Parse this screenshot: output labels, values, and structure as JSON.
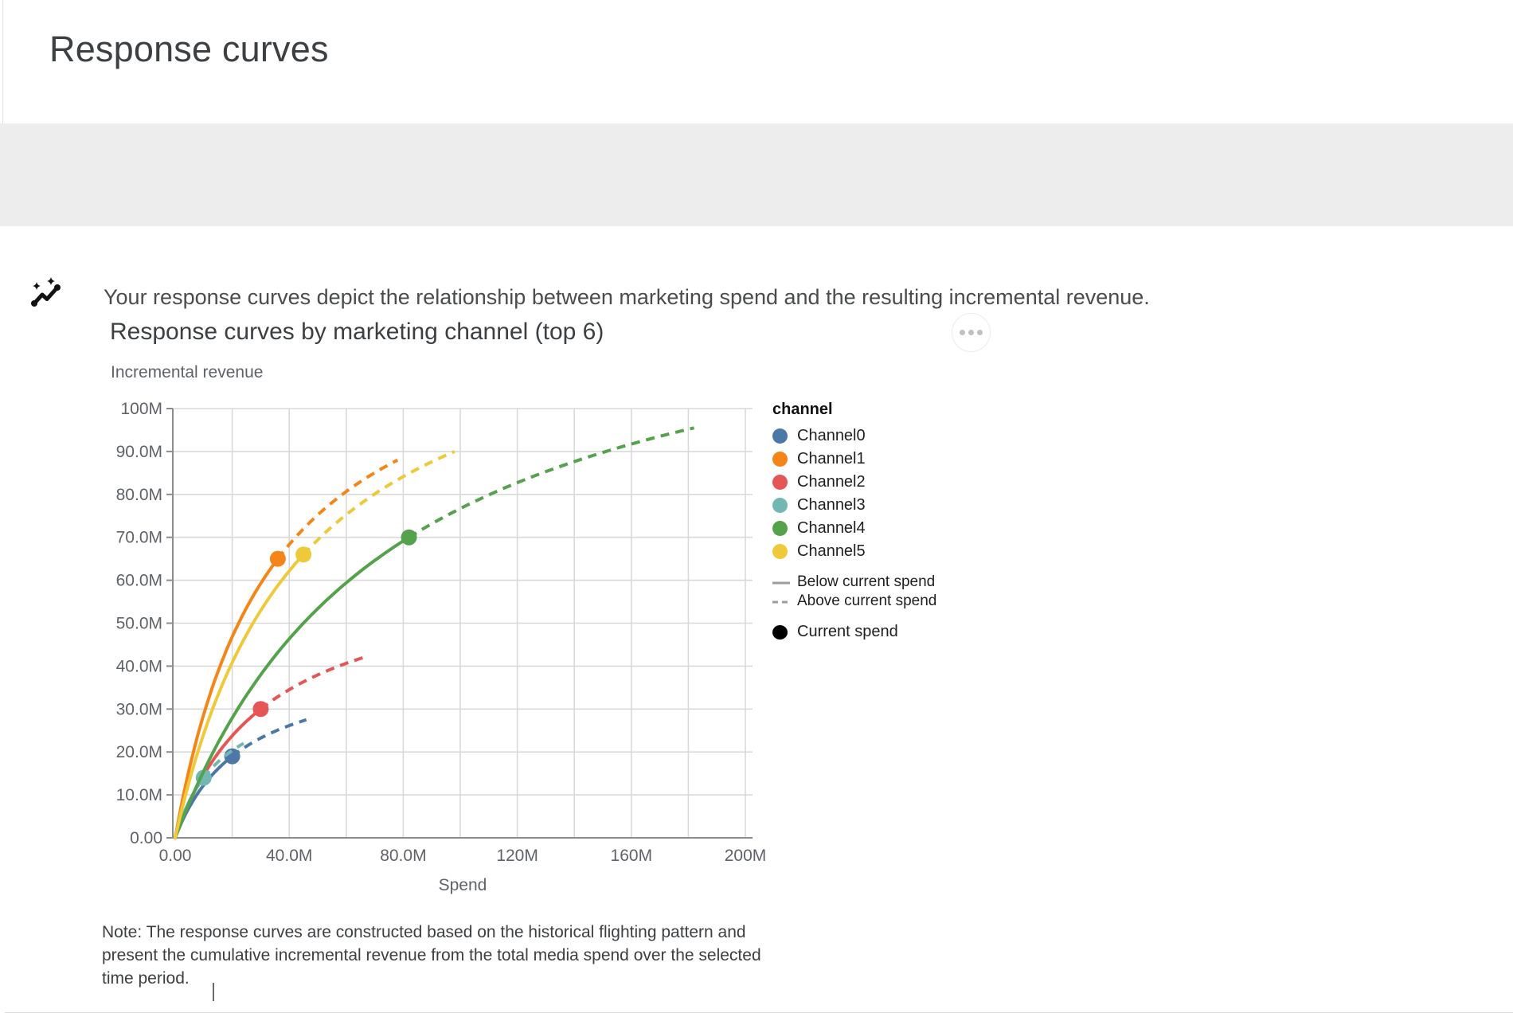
{
  "page": {
    "title": "Response curves"
  },
  "banner": {
    "icon": "insights-icon",
    "text": "Your response curves depict the relationship between marketing spend and the resulting incremental revenue."
  },
  "toolbar": {
    "more_options": "more-options"
  },
  "note": {
    "text": "Note: The response curves are constructed based on the historical flighting pattern and present the cumulative incremental revenue from the total media spend over the selected time period."
  },
  "colors": {
    "banner_background": "#ededed",
    "gridline": "#d9d9d9",
    "axis_line": "#8c8c8c",
    "axis_label": "#5f6368",
    "legend_line_gray": "#9d9d9d",
    "current_spend_dot": "#000000"
  },
  "chart_data": {
    "type": "line",
    "title": "Response curves by marketing channel (top 6)",
    "y_axis_title": "Incremental revenue",
    "x_axis_title": "Spend",
    "legend_title": "channel",
    "legend_position": "right",
    "grid": true,
    "units": "currency_millions",
    "x_range_m": [
      0,
      200
    ],
    "y_range_m": [
      0,
      100
    ],
    "x_gridline_step_m": 20,
    "y_gridline_step_m": 10,
    "x_ticks": [
      {
        "value": 0,
        "label": "0.00"
      },
      {
        "value": 40,
        "label": "40.0M"
      },
      {
        "value": 80,
        "label": "80.0M"
      },
      {
        "value": 120,
        "label": "120M"
      },
      {
        "value": 160,
        "label": "160M"
      },
      {
        "value": 200,
        "label": "200M"
      }
    ],
    "y_ticks": [
      {
        "value": 0,
        "label": "0.00"
      },
      {
        "value": 10,
        "label": "10.0M"
      },
      {
        "value": 20,
        "label": "20.0M"
      },
      {
        "value": 30,
        "label": "30.0M"
      },
      {
        "value": 40,
        "label": "40.0M"
      },
      {
        "value": 50,
        "label": "50.0M"
      },
      {
        "value": 60,
        "label": "60.0M"
      },
      {
        "value": 70,
        "label": "70.0M"
      },
      {
        "value": 80,
        "label": "80.0M"
      },
      {
        "value": 90,
        "label": "90.0M"
      },
      {
        "value": 100,
        "label": "100M"
      }
    ],
    "series": [
      {
        "name": "Channel0",
        "color": "#4c78a8",
        "current_spend_m": 20,
        "current_revenue_m": 19,
        "max_spend_m": 46,
        "max_revenue_m": 27.5
      },
      {
        "name": "Channel1",
        "color": "#f58518",
        "current_spend_m": 36,
        "current_revenue_m": 65,
        "max_spend_m": 78,
        "max_revenue_m": 88
      },
      {
        "name": "Channel2",
        "color": "#e45756",
        "current_spend_m": 30,
        "current_revenue_m": 30,
        "max_spend_m": 66,
        "max_revenue_m": 42
      },
      {
        "name": "Channel3",
        "color": "#72b7b2",
        "current_spend_m": 10,
        "current_revenue_m": 14,
        "max_spend_m": 24,
        "max_revenue_m": 22
      },
      {
        "name": "Channel4",
        "color": "#54a24b",
        "current_spend_m": 82,
        "current_revenue_m": 70,
        "max_spend_m": 182,
        "max_revenue_m": 95.5
      },
      {
        "name": "Channel5",
        "color": "#eeca3b",
        "current_spend_m": 45,
        "current_revenue_m": 66,
        "max_spend_m": 98,
        "max_revenue_m": 90
      }
    ],
    "line_styles": [
      {
        "style": "solid",
        "label": "Below current spend"
      },
      {
        "style": "dashed",
        "label": "Above current spend"
      }
    ],
    "point_legend": {
      "label": "Current spend",
      "color": "#000000"
    }
  }
}
